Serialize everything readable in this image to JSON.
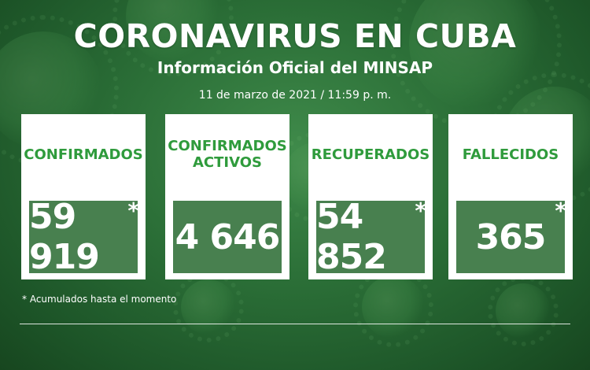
{
  "header": {
    "title": "CORONAVIRUS EN CUBA",
    "subtitle": "Información Oficial del MINSAP",
    "date": "11 de marzo de 2021 / 11:59 p. m."
  },
  "cards": [
    {
      "label": "CONFIRMADOS",
      "value": "59 919",
      "star": "*"
    },
    {
      "label": "CONFIRMADOS ACTIVOS",
      "value": "4 646",
      "star": ""
    },
    {
      "label": "RECUPERADOS",
      "value": "54 852",
      "star": "*"
    },
    {
      "label": "FALLECIDOS",
      "value": "365",
      "star": "*"
    }
  ],
  "footnote": "* Acumulados hasta el momento",
  "colors": {
    "accent_green": "#2f9b3c",
    "panel_green": "#2f6e37",
    "background": "#2a6d36"
  }
}
